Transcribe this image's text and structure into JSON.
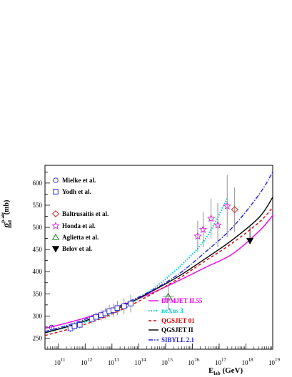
{
  "chart_data": {
    "type": "scatter",
    "xlabel": "E",
    "xlabel_sub": "lab",
    "xlabel_unit": "(GeV)",
    "ylabel": "σ",
    "ylabel_sup": "p-air",
    "ylabel_sub": "inel",
    "ylabel_unit": "(mb)",
    "x_scale": "log10",
    "xlim": [
      10.5,
      19
    ],
    "ylim": [
      225,
      640
    ],
    "x_ticks": [
      {
        "v": 11,
        "label": "10",
        "exp": "11"
      },
      {
        "v": 12,
        "label": "10",
        "exp": "12"
      },
      {
        "v": 13,
        "label": "10",
        "exp": "13"
      },
      {
        "v": 14,
        "label": "10",
        "exp": "14"
      },
      {
        "v": 15,
        "label": "10",
        "exp": "15"
      },
      {
        "v": 16,
        "label": "10",
        "exp": "16"
      },
      {
        "v": 17,
        "label": "10",
        "exp": "17"
      },
      {
        "v": 18,
        "label": "10",
        "exp": "18"
      },
      {
        "v": 19,
        "label": "10",
        "exp": "19"
      }
    ],
    "y_ticks": [
      250,
      300,
      350,
      400,
      450,
      500,
      550,
      600
    ],
    "experiments": [
      {
        "name": "Mielke et al.",
        "marker": "circle",
        "color": "#3333cc",
        "points": [
          {
            "x": 10.75,
            "y": 274,
            "err": 5
          }
        ]
      },
      {
        "name": "Yodh et al.",
        "marker": "square",
        "color": "#3333cc",
        "points": [
          {
            "x": 11.45,
            "y": 272,
            "err": 8
          },
          {
            "x": 11.6,
            "y": 277,
            "err": 8
          },
          {
            "x": 11.8,
            "y": 280,
            "err": 8
          },
          {
            "x": 12.25,
            "y": 293,
            "err": 10
          },
          {
            "x": 12.4,
            "y": 298,
            "err": 10
          },
          {
            "x": 12.6,
            "y": 302,
            "err": 12
          },
          {
            "x": 12.75,
            "y": 306,
            "err": 12
          },
          {
            "x": 12.9,
            "y": 311,
            "err": 14
          },
          {
            "x": 13.05,
            "y": 313,
            "err": 15
          },
          {
            "x": 13.2,
            "y": 318,
            "err": 16
          },
          {
            "x": 13.45,
            "y": 322,
            "err": 18
          },
          {
            "x": 13.7,
            "y": 328,
            "err": 20
          }
        ]
      },
      {
        "name": "Baltrusaitis et al.",
        "marker": "diamond",
        "color": "#cc2222",
        "points": [
          {
            "x": 17.58,
            "y": 540,
            "err": 50
          }
        ]
      },
      {
        "name": "Honda et al.",
        "marker": "star",
        "color": "#dd22dd",
        "points": [
          {
            "x": 16.2,
            "y": 480,
            "err": 35
          },
          {
            "x": 16.4,
            "y": 495,
            "err": 40
          },
          {
            "x": 16.7,
            "y": 520,
            "err": 45
          },
          {
            "x": 16.95,
            "y": 505,
            "err": 50
          },
          {
            "x": 17.3,
            "y": 548,
            "err": 70
          }
        ]
      },
      {
        "name": "Aglietta et al.",
        "marker": "triangle",
        "color": "#228822",
        "points": [
          {
            "x": 15.1,
            "y": 344,
            "err": 30
          }
        ]
      },
      {
        "name": "Belov et al.",
        "marker": "triangle-down",
        "color": "#000000",
        "points": [
          {
            "x": 18.15,
            "y": 470,
            "err": 30
          }
        ]
      }
    ],
    "series": [
      {
        "name": "DPMJET II.55",
        "color": "#ee00ee",
        "dash": "solid",
        "x": [
          10.5,
          11.5,
          12.5,
          13.5,
          14.5,
          15.5,
          16.5,
          17.5,
          18.5,
          19
        ],
        "y": [
          272,
          287,
          305,
          327,
          352,
          380,
          410,
          440,
          492,
          527
        ]
      },
      {
        "name": "neXus 3",
        "color": "#00cccc",
        "dash": "dotted",
        "x": [
          10.5,
          11.5,
          12.5,
          13.5,
          14.5,
          15.5,
          16.5,
          17.3
        ],
        "y": [
          263,
          278,
          296,
          322,
          360,
          410,
          475,
          565
        ]
      },
      {
        "name": "QGSJET 01",
        "color": "#dd0000",
        "dash": "dashed",
        "x": [
          10.5,
          11.5,
          12.5,
          13.5,
          14.5,
          15.5,
          16.5,
          17.5,
          18.5,
          19
        ],
        "y": [
          256,
          272,
          292,
          318,
          350,
          385,
          425,
          465,
          512,
          545
        ]
      },
      {
        "name": "QGSJET II",
        "color": "#000000",
        "dash": "solid",
        "x": [
          10.5,
          11.5,
          12.5,
          13.5,
          14.5,
          15.5,
          16.5,
          17.5,
          18.5,
          19
        ],
        "y": [
          262,
          279,
          300,
          325,
          356,
          390,
          430,
          472,
          523,
          568
        ]
      },
      {
        "name": "SIBYLL 2.1",
        "color": "#2222dd",
        "dash": "dashdot",
        "x": [
          10.5,
          11.5,
          12.5,
          13.5,
          14.5,
          15.5,
          16.5,
          17.5,
          18.5,
          19
        ],
        "y": [
          265,
          282,
          304,
          329,
          358,
          395,
          445,
          500,
          575,
          625
        ]
      }
    ]
  }
}
